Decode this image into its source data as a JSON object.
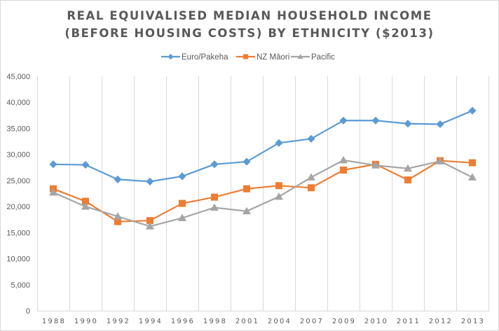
{
  "chart_data": {
    "type": "line",
    "title": [
      "REAL EQUIVALISED MEDIAN HOUSEHOLD INCOME",
      "(BEFORE HOUSING COSTS) BY ETHNICITY ($2013)"
    ],
    "xlabel": "",
    "ylabel": "",
    "categories": [
      "1988",
      "1990",
      "1992",
      "1994",
      "1996",
      "1998",
      "2001",
      "2004",
      "2007",
      "2009",
      "2010",
      "2011",
      "2012",
      "2013"
    ],
    "ylim": [
      0,
      45000
    ],
    "yticks": [
      0,
      5000,
      10000,
      15000,
      20000,
      25000,
      30000,
      35000,
      40000,
      45000
    ],
    "ytick_labels": [
      "0",
      "5,000",
      "10,000",
      "15,000",
      "20,000",
      "25,000",
      "30,000",
      "35,000",
      "40,000",
      "45,000"
    ],
    "grid": "vertical",
    "legend_position": "top",
    "series": [
      {
        "name": "Euro/Pakeha",
        "color": "#5b9bd5",
        "marker": "diamond",
        "values": [
          28100,
          28000,
          25200,
          24800,
          25800,
          28100,
          28600,
          32200,
          33000,
          36500,
          36500,
          35900,
          35800,
          38400
        ]
      },
      {
        "name": "NZ Māori",
        "color": "#ed7d31",
        "marker": "square",
        "values": [
          23400,
          21000,
          17100,
          17300,
          20600,
          21800,
          23400,
          24000,
          23600,
          27000,
          28100,
          25100,
          28800,
          28400
        ]
      },
      {
        "name": "Pacific",
        "color": "#a5a5a5",
        "marker": "triangle",
        "values": [
          22700,
          20000,
          18100,
          16200,
          17800,
          19800,
          19100,
          21900,
          25600,
          28900,
          27900,
          27300,
          28700,
          25600
        ]
      }
    ]
  }
}
